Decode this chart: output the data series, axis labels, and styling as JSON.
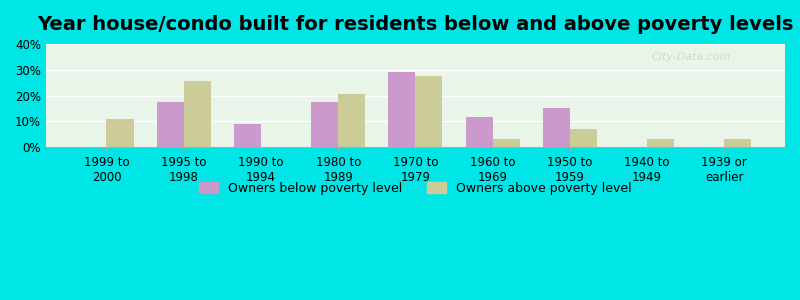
{
  "title": "Year house/condo built for residents below and above poverty levels",
  "categories": [
    "1999 to\n2000",
    "1995 to\n1998",
    "1990 to\n1994",
    "1980 to\n1989",
    "1970 to\n1979",
    "1960 to\n1969",
    "1950 to\n1959",
    "1940 to\n1949",
    "1939 or\nearlier"
  ],
  "below_poverty": [
    0,
    17.5,
    9.0,
    17.5,
    29.0,
    11.5,
    15.0,
    0,
    0
  ],
  "above_poverty": [
    11.0,
    25.5,
    0,
    20.5,
    27.5,
    3.0,
    7.0,
    3.0,
    3.0
  ],
  "below_color": "#cc99cc",
  "above_color": "#cccc99",
  "background_color": "#e8f5e8",
  "outer_background": "#00e5e5",
  "ylim": [
    0,
    40
  ],
  "yticks": [
    0,
    10,
    20,
    30,
    40
  ],
  "ylabel_format": "{}%",
  "legend_below": "Owners below poverty level",
  "legend_above": "Owners above poverty level",
  "title_fontsize": 14,
  "tick_fontsize": 8.5,
  "legend_fontsize": 9
}
